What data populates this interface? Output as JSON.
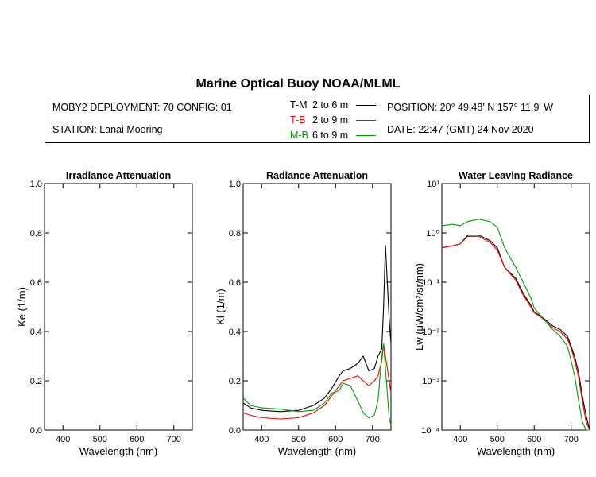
{
  "header": {
    "title": "Marine Optical Buoy NOAA/MLML",
    "deployment": "MOBY2 DEPLOYMENT: 70 CONFIG: 01",
    "station": "STATION: Lanai Mooring",
    "position": "POSITION: 20° 49.48' N   157° 11.9' W",
    "date": "DATE: 22:47 (GMT) 24 Nov 2020"
  },
  "legend": [
    {
      "code": "T-M",
      "range": "2 to 6  m",
      "color": "#000000"
    },
    {
      "code": "T-B",
      "range": "2 to 9  m",
      "color": "#ff0000"
    },
    {
      "code": "M-B",
      "range": "6 to 9  m",
      "color": "#00a000"
    }
  ],
  "chart_data": [
    {
      "type": "line",
      "title": "Irradiance Attenuation",
      "xlabel": "Wavelength (nm)",
      "ylabel": "Ke  (1/m)",
      "xlim": [
        350,
        750
      ],
      "ylim": [
        0,
        1
      ],
      "xticks": [
        "400",
        "500",
        "600",
        "700"
      ],
      "yticks": [
        "0.0",
        "0.2",
        "0.4",
        "0.6",
        "0.8",
        "1.0"
      ],
      "series": []
    },
    {
      "type": "line",
      "title": "Radiance Attenuation",
      "xlabel": "Wavelength (nm)",
      "ylabel": "Kl  (1/m)",
      "xlim": [
        350,
        750
      ],
      "ylim": [
        0,
        1
      ],
      "xticks": [
        "400",
        "500",
        "600",
        "700"
      ],
      "yticks": [
        "0.0",
        "0.2",
        "0.4",
        "0.6",
        "0.8",
        "1.0"
      ],
      "series": [
        {
          "name": "T-M",
          "color": "#000000",
          "x": [
            350,
            370,
            400,
            450,
            500,
            540,
            570,
            590,
            610,
            620,
            640,
            660,
            675,
            690,
            705,
            715,
            725,
            730,
            735,
            740,
            745,
            750
          ],
          "y": [
            0.11,
            0.09,
            0.08,
            0.075,
            0.08,
            0.1,
            0.13,
            0.17,
            0.22,
            0.24,
            0.25,
            0.27,
            0.3,
            0.24,
            0.25,
            0.3,
            0.33,
            0.5,
            0.75,
            0.6,
            0.45,
            0.35
          ]
        },
        {
          "name": "T-B",
          "color": "#ff0000",
          "x": [
            350,
            370,
            400,
            450,
            500,
            540,
            570,
            590,
            610,
            620,
            640,
            660,
            675,
            690,
            705,
            715,
            725,
            730,
            735,
            740,
            745,
            750
          ],
          "y": [
            0.07,
            0.06,
            0.05,
            0.045,
            0.05,
            0.07,
            0.1,
            0.14,
            0.18,
            0.2,
            0.21,
            0.22,
            0.2,
            0.18,
            0.2,
            0.22,
            0.28,
            0.35,
            0.3,
            0.25,
            0.2,
            0.15
          ]
        },
        {
          "name": "M-B",
          "color": "#00a000",
          "x": [
            350,
            370,
            400,
            450,
            500,
            540,
            570,
            590,
            610,
            620,
            640,
            660,
            675,
            690,
            705,
            715,
            725,
            730,
            735,
            740,
            745,
            750
          ],
          "y": [
            0.13,
            0.1,
            0.09,
            0.085,
            0.075,
            0.08,
            0.11,
            0.15,
            0.16,
            0.19,
            0.18,
            0.12,
            0.07,
            0.05,
            0.06,
            0.12,
            0.3,
            0.35,
            0.25,
            0.15,
            0.05,
            0.02
          ]
        }
      ]
    },
    {
      "type": "line",
      "title": "Water Leaving Radiance",
      "xlabel": "Wavelength (nm)",
      "ylabel": "Lw  (μW/cm²/sr/nm)",
      "xlim": [
        350,
        750
      ],
      "ylim": [
        0.0001,
        10
      ],
      "yscale": "log",
      "xticks": [
        "400",
        "500",
        "600",
        "700"
      ],
      "yticks": [
        "10¹",
        "10⁰",
        "10⁻¹",
        "10⁻²",
        "10⁻³",
        "10⁻⁴"
      ],
      "series": [
        {
          "name": "T-M",
          "color": "#000000",
          "x": [
            350,
            380,
            400,
            420,
            450,
            480,
            500,
            520,
            550,
            570,
            590,
            600,
            620,
            650,
            670,
            690,
            700,
            710,
            720,
            730,
            740,
            750
          ],
          "y": [
            0.5,
            0.55,
            0.6,
            0.9,
            0.9,
            0.7,
            0.5,
            0.2,
            0.12,
            0.06,
            0.035,
            0.025,
            0.02,
            0.013,
            0.011,
            0.008,
            0.005,
            0.003,
            0.0015,
            0.0005,
            0.0002,
            0.0001
          ]
        },
        {
          "name": "T-B",
          "color": "#ff0000",
          "x": [
            350,
            380,
            400,
            420,
            450,
            480,
            500,
            520,
            550,
            570,
            590,
            600,
            620,
            650,
            670,
            690,
            700,
            710,
            720,
            730,
            740,
            750
          ],
          "y": [
            0.5,
            0.55,
            0.6,
            0.85,
            0.85,
            0.65,
            0.45,
            0.2,
            0.11,
            0.055,
            0.032,
            0.024,
            0.019,
            0.012,
            0.01,
            0.007,
            0.0045,
            0.0025,
            0.0012,
            0.0004,
            0.00015,
            0.0001
          ]
        },
        {
          "name": "M-B",
          "color": "#00a000",
          "x": [
            350,
            380,
            400,
            420,
            450,
            480,
            500,
            520,
            550,
            570,
            590,
            600,
            620,
            650,
            670,
            690,
            700,
            710,
            720,
            730,
            740,
            750
          ],
          "y": [
            1.4,
            1.5,
            1.4,
            1.7,
            1.9,
            1.7,
            1.3,
            0.5,
            0.2,
            0.1,
            0.05,
            0.03,
            0.02,
            0.011,
            0.008,
            0.005,
            0.0025,
            0.0012,
            0.0004,
            0.00015,
            0.0001,
            0.0001
          ]
        }
      ]
    }
  ]
}
